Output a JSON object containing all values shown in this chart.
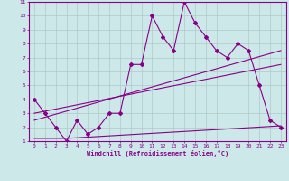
{
  "xlabel": "Windchill (Refroidissement éolien,°C)",
  "background_color": "#cce8e8",
  "grid_color": "#b0c8c8",
  "line_color": "#880088",
  "xlim": [
    -0.5,
    23.5
  ],
  "ylim": [
    1,
    11
  ],
  "xticks": [
    0,
    1,
    2,
    3,
    4,
    5,
    6,
    7,
    8,
    9,
    10,
    11,
    12,
    13,
    14,
    15,
    16,
    17,
    18,
    19,
    20,
    21,
    22,
    23
  ],
  "yticks": [
    1,
    2,
    3,
    4,
    5,
    6,
    7,
    8,
    9,
    10,
    11
  ],
  "series1_x": [
    0,
    1,
    2,
    3,
    4,
    5,
    6,
    7,
    8,
    9,
    10,
    11,
    12,
    13,
    14,
    15,
    16,
    17,
    18,
    19,
    20,
    21,
    22,
    23
  ],
  "series1_y": [
    4.0,
    3.0,
    2.0,
    1.0,
    2.5,
    1.5,
    2.0,
    3.0,
    3.0,
    6.5,
    6.5,
    10.0,
    8.5,
    7.5,
    11.0,
    9.5,
    8.5,
    7.5,
    7.0,
    8.0,
    7.5,
    5.0,
    2.5,
    2.0
  ],
  "series2_x": [
    0,
    23
  ],
  "series2_y": [
    2.5,
    7.5
  ],
  "series3_x": [
    0,
    23
  ],
  "series3_y": [
    3.0,
    6.5
  ],
  "series4_x": [
    0,
    3,
    23
  ],
  "series4_y": [
    1.2,
    1.2,
    2.1
  ]
}
